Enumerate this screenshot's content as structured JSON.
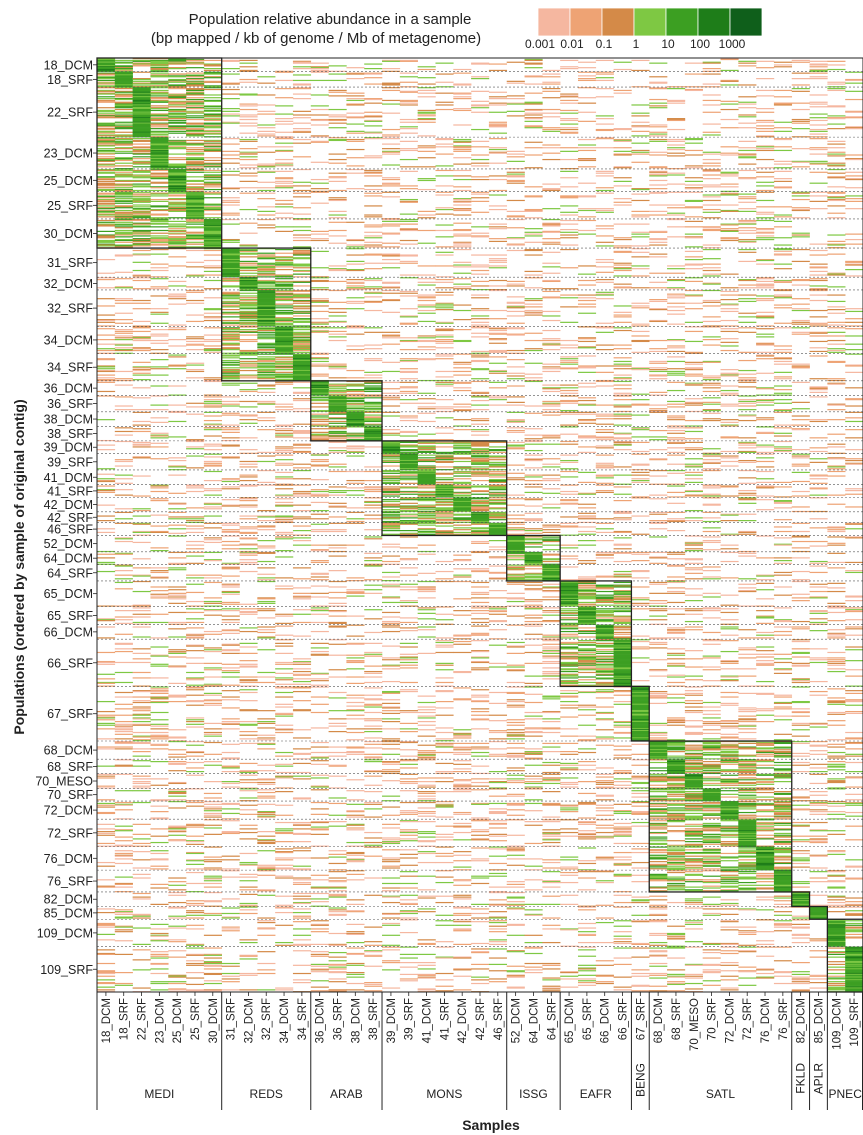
{
  "chart_data": {
    "type": "heatmap",
    "legend": {
      "title_line1": "Population relative abundance in a sample",
      "title_line2": "(bp mapped / kb of genome / Mb of metagenome)",
      "colors": [
        "#f5b7a0",
        "#eea374",
        "#d48a48",
        "#7ec843",
        "#3c9f22",
        "#1e7d19",
        "#0f5f1b"
      ],
      "ticks": [
        "0.001",
        "0.01",
        "0.1",
        "1",
        "10",
        "100",
        "1000"
      ]
    },
    "ylabel": "Populations (ordered by sample of original contig)",
    "xlabel": "Samples",
    "samples": [
      "18_DCM",
      "18_SRF",
      "22_SRF",
      "23_DCM",
      "25_DCM",
      "25_SRF",
      "30_DCM",
      "31_SRF",
      "32_DCM",
      "32_SRF",
      "34_DCM",
      "34_SRF",
      "36_DCM",
      "36_SRF",
      "38_DCM",
      "38_SRF",
      "39_DCM",
      "39_SRF",
      "41_DCM",
      "41_SRF",
      "42_DCM",
      "42_SRF",
      "46_SRF",
      "52_DCM",
      "64_DCM",
      "64_SRF",
      "65_DCM",
      "65_SRF",
      "66_DCM",
      "66_SRF",
      "67_SRF",
      "68_DCM",
      "68_SRF",
      "70_MESO",
      "70_SRF",
      "72_DCM",
      "72_SRF",
      "76_DCM",
      "76_SRF",
      "82_DCM",
      "85_DCM",
      "109_DCM",
      "109_SRF"
    ],
    "regions": [
      {
        "name": "MEDI",
        "samples": 7
      },
      {
        "name": "REDS",
        "samples": 5
      },
      {
        "name": "ARAB",
        "samples": 4
      },
      {
        "name": "MONS",
        "samples": 7
      },
      {
        "name": "ISSG",
        "samples": 3
      },
      {
        "name": "EAFR",
        "samples": 4
      },
      {
        "name": "BENG",
        "samples": 1
      },
      {
        "name": "SATL",
        "samples": 8
      },
      {
        "name": "FKLD",
        "samples": 1
      },
      {
        "name": "APLR",
        "samples": 1
      },
      {
        "name": "PNEC",
        "samples": 2
      }
    ],
    "population_groups": [
      {
        "label": "18_DCM",
        "sample": "18_DCM",
        "size": 15
      },
      {
        "label": "18_SRF",
        "sample": "18_SRF",
        "size": 17
      },
      {
        "label": "22_SRF",
        "sample": "22_SRF",
        "size": 55
      },
      {
        "label": "23_DCM",
        "sample": "23_DCM",
        "size": 35
      },
      {
        "label": "25_DCM",
        "sample": "25_DCM",
        "size": 25
      },
      {
        "label": "25_SRF",
        "sample": "25_SRF",
        "size": 30
      },
      {
        "label": "30_DCM",
        "sample": "30_DCM",
        "size": 32
      },
      {
        "label": "31_SRF",
        "sample": "31_SRF",
        "size": 32
      },
      {
        "label": "32_DCM",
        "sample": "32_DCM",
        "size": 14
      },
      {
        "label": "32_SRF",
        "sample": "32_SRF",
        "size": 40
      },
      {
        "label": "34_DCM",
        "sample": "34_DCM",
        "size": 30
      },
      {
        "label": "34_SRF",
        "sample": "34_SRF",
        "size": 30
      },
      {
        "label": "36_DCM",
        "sample": "36_DCM",
        "size": 16
      },
      {
        "label": "36_SRF",
        "sample": "36_SRF",
        "size": 18
      },
      {
        "label": "38_DCM",
        "sample": "38_DCM",
        "size": 16
      },
      {
        "label": "38_SRF",
        "sample": "38_SRF",
        "size": 16
      },
      {
        "label": "39_DCM",
        "sample": "39_DCM",
        "size": 14
      },
      {
        "label": "39_SRF",
        "sample": "39_SRF",
        "size": 18
      },
      {
        "label": "41_DCM",
        "sample": "41_DCM",
        "size": 16
      },
      {
        "label": "41_SRF",
        "sample": "41_SRF",
        "size": 14
      },
      {
        "label": "42_DCM",
        "sample": "42_DCM",
        "size": 16
      },
      {
        "label": "42_SRF",
        "sample": "42_SRF",
        "size": 12
      },
      {
        "label": "46_SRF",
        "sample": "46_SRF",
        "size": 14
      },
      {
        "label": "52_DCM",
        "sample": "52_DCM",
        "size": 18
      },
      {
        "label": "64_DCM",
        "sample": "64_DCM",
        "size": 14
      },
      {
        "label": "64_SRF",
        "sample": "64_SRF",
        "size": 18
      },
      {
        "label": "65_DCM",
        "sample": "65_DCM",
        "size": 28
      },
      {
        "label": "65_SRF",
        "sample": "65_SRF",
        "size": 20
      },
      {
        "label": "66_DCM",
        "sample": "66_DCM",
        "size": 16
      },
      {
        "label": "66_SRF",
        "sample": "66_SRF",
        "size": 52
      },
      {
        "label": "67_SRF",
        "sample": "67_SRF",
        "size": 60
      },
      {
        "label": "68_DCM",
        "sample": "68_DCM",
        "size": 20
      },
      {
        "label": "68_SRF",
        "sample": "68_SRF",
        "size": 16
      },
      {
        "label": "70_MESO",
        "sample": "70_MESO",
        "size": 16
      },
      {
        "label": "70_SRF",
        "sample": "70_SRF",
        "size": 14
      },
      {
        "label": "72_DCM",
        "sample": "72_DCM",
        "size": 20
      },
      {
        "label": "72_SRF",
        "sample": "72_SRF",
        "size": 30
      },
      {
        "label": "76_DCM",
        "sample": "76_DCM",
        "size": 26
      },
      {
        "label": "76_SRF",
        "sample": "76_SRF",
        "size": 24
      },
      {
        "label": "82_DCM",
        "sample": "82_DCM",
        "size": 16
      },
      {
        "label": "85_DCM",
        "sample": "85_DCM",
        "size": 14
      },
      {
        "label": "109_DCM",
        "sample": "109_DCM",
        "size": 30
      },
      {
        "label": "109_SRF",
        "sample": "109_SRF",
        "size": 50
      }
    ]
  }
}
